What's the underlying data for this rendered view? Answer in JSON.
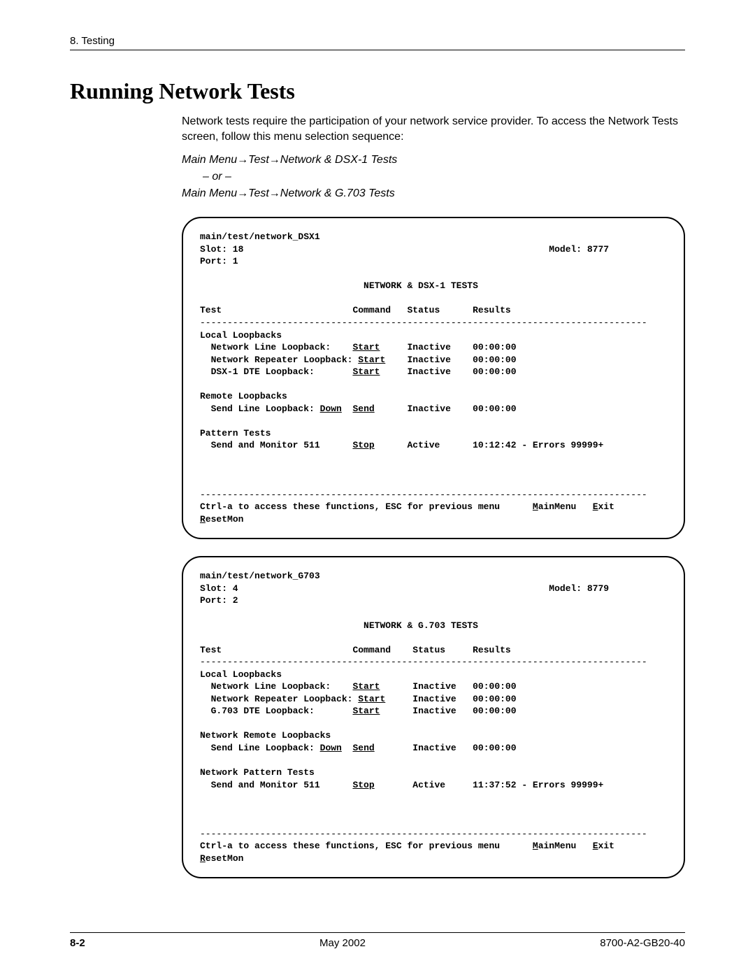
{
  "header": {
    "chapter": "8. Testing"
  },
  "title": "Running Network Tests",
  "intro": "Network tests require the participation of your network service provider. To access the Network Tests screen, follow this menu selection sequence:",
  "menu_path_1": "Main Menu→Test→Network & DSX-1 Tests",
  "or_label": "– or –",
  "menu_path_2": "Main Menu→Test→Network & G.703 Tests",
  "terminal1": {
    "path": "main/test/network_DSX1",
    "slot_label": "Slot: 18",
    "model_label": "Model: 8777",
    "port_label": "Port: 1",
    "screen_title": "NETWORK & DSX-1 TESTS",
    "col_test": "Test",
    "col_command": "Command",
    "col_status": "Status",
    "col_results": "Results",
    "sec_local": "Local Loopbacks",
    "row_nll_label": "  Network Line Loopback:",
    "row_nll_cmd": "Start",
    "row_nll_status": "Inactive",
    "row_nll_res": "00:00:00",
    "row_nrl_label": "  Network Repeater Loopback:",
    "row_nrl_cmd": "Start",
    "row_nrl_status": "Inactive",
    "row_nrl_res": "00:00:00",
    "row_dte_label": "  DSX-1 DTE Loopback:",
    "row_dte_cmd": "Start",
    "row_dte_status": "Inactive",
    "row_dte_res": "00:00:00",
    "sec_remote": "Remote Loopbacks",
    "row_sll_label": "  Send Line Loopback:",
    "row_sll_dir": "Down",
    "row_sll_cmd": "Send",
    "row_sll_status": "Inactive",
    "row_sll_res": "00:00:00",
    "sec_pattern": "Pattern Tests",
    "row_pat_label": "  Send and Monitor 511",
    "row_pat_cmd": "Stop",
    "row_pat_status": "Active",
    "row_pat_res": "10:12:42 - Errors 99999+",
    "help": "Ctrl-a to access these functions, ESC for previous menu",
    "mainmenu_m": "M",
    "mainmenu_rest": "ainMenu",
    "exit_e": "E",
    "exit_rest": "xit",
    "resetmon_r": "R",
    "resetmon_rest": "esetMon"
  },
  "terminal2": {
    "path": "main/test/network_G703",
    "slot_label": "Slot: 4",
    "model_label": "Model: 8779",
    "port_label": "Port: 2",
    "screen_title": "NETWORK & G.703 TESTS",
    "col_test": "Test",
    "col_command": "Command",
    "col_status": "Status",
    "col_results": "Results",
    "sec_local": "Local Loopbacks",
    "row_nll_label": "  Network Line Loopback:",
    "row_nll_cmd": "Start",
    "row_nll_status": "Inactive",
    "row_nll_res": "00:00:00",
    "row_nrl_label": "  Network Repeater Loopback:",
    "row_nrl_cmd": "Start",
    "row_nrl_status": "Inactive",
    "row_nrl_res": "00:00:00",
    "row_dte_label": "  G.703 DTE Loopback:",
    "row_dte_cmd": "Start",
    "row_dte_status": "Inactive",
    "row_dte_res": "00:00:00",
    "sec_remote": "Network Remote Loopbacks",
    "row_sll_label": "  Send Line Loopback:",
    "row_sll_dir": "Down",
    "row_sll_cmd": "Send",
    "row_sll_status": "Inactive",
    "row_sll_res": "00:00:00",
    "sec_pattern": "Network Pattern Tests",
    "row_pat_label": "  Send and Monitor 511",
    "row_pat_cmd": "Stop",
    "row_pat_status": "Active",
    "row_pat_res": "11:37:52 - Errors 99999+",
    "help": "Ctrl-a to access these functions, ESC for previous menu",
    "mainmenu_m": "M",
    "mainmenu_rest": "ainMenu",
    "exit_e": "E",
    "exit_rest": "xit",
    "resetmon_r": "R",
    "resetmon_rest": "esetMon"
  },
  "footer": {
    "page": "8-2",
    "date": "May 2002",
    "docnum": "8700-A2-GB20-40"
  },
  "style": {
    "hr": "----------------------------------------------------------------------------------"
  }
}
